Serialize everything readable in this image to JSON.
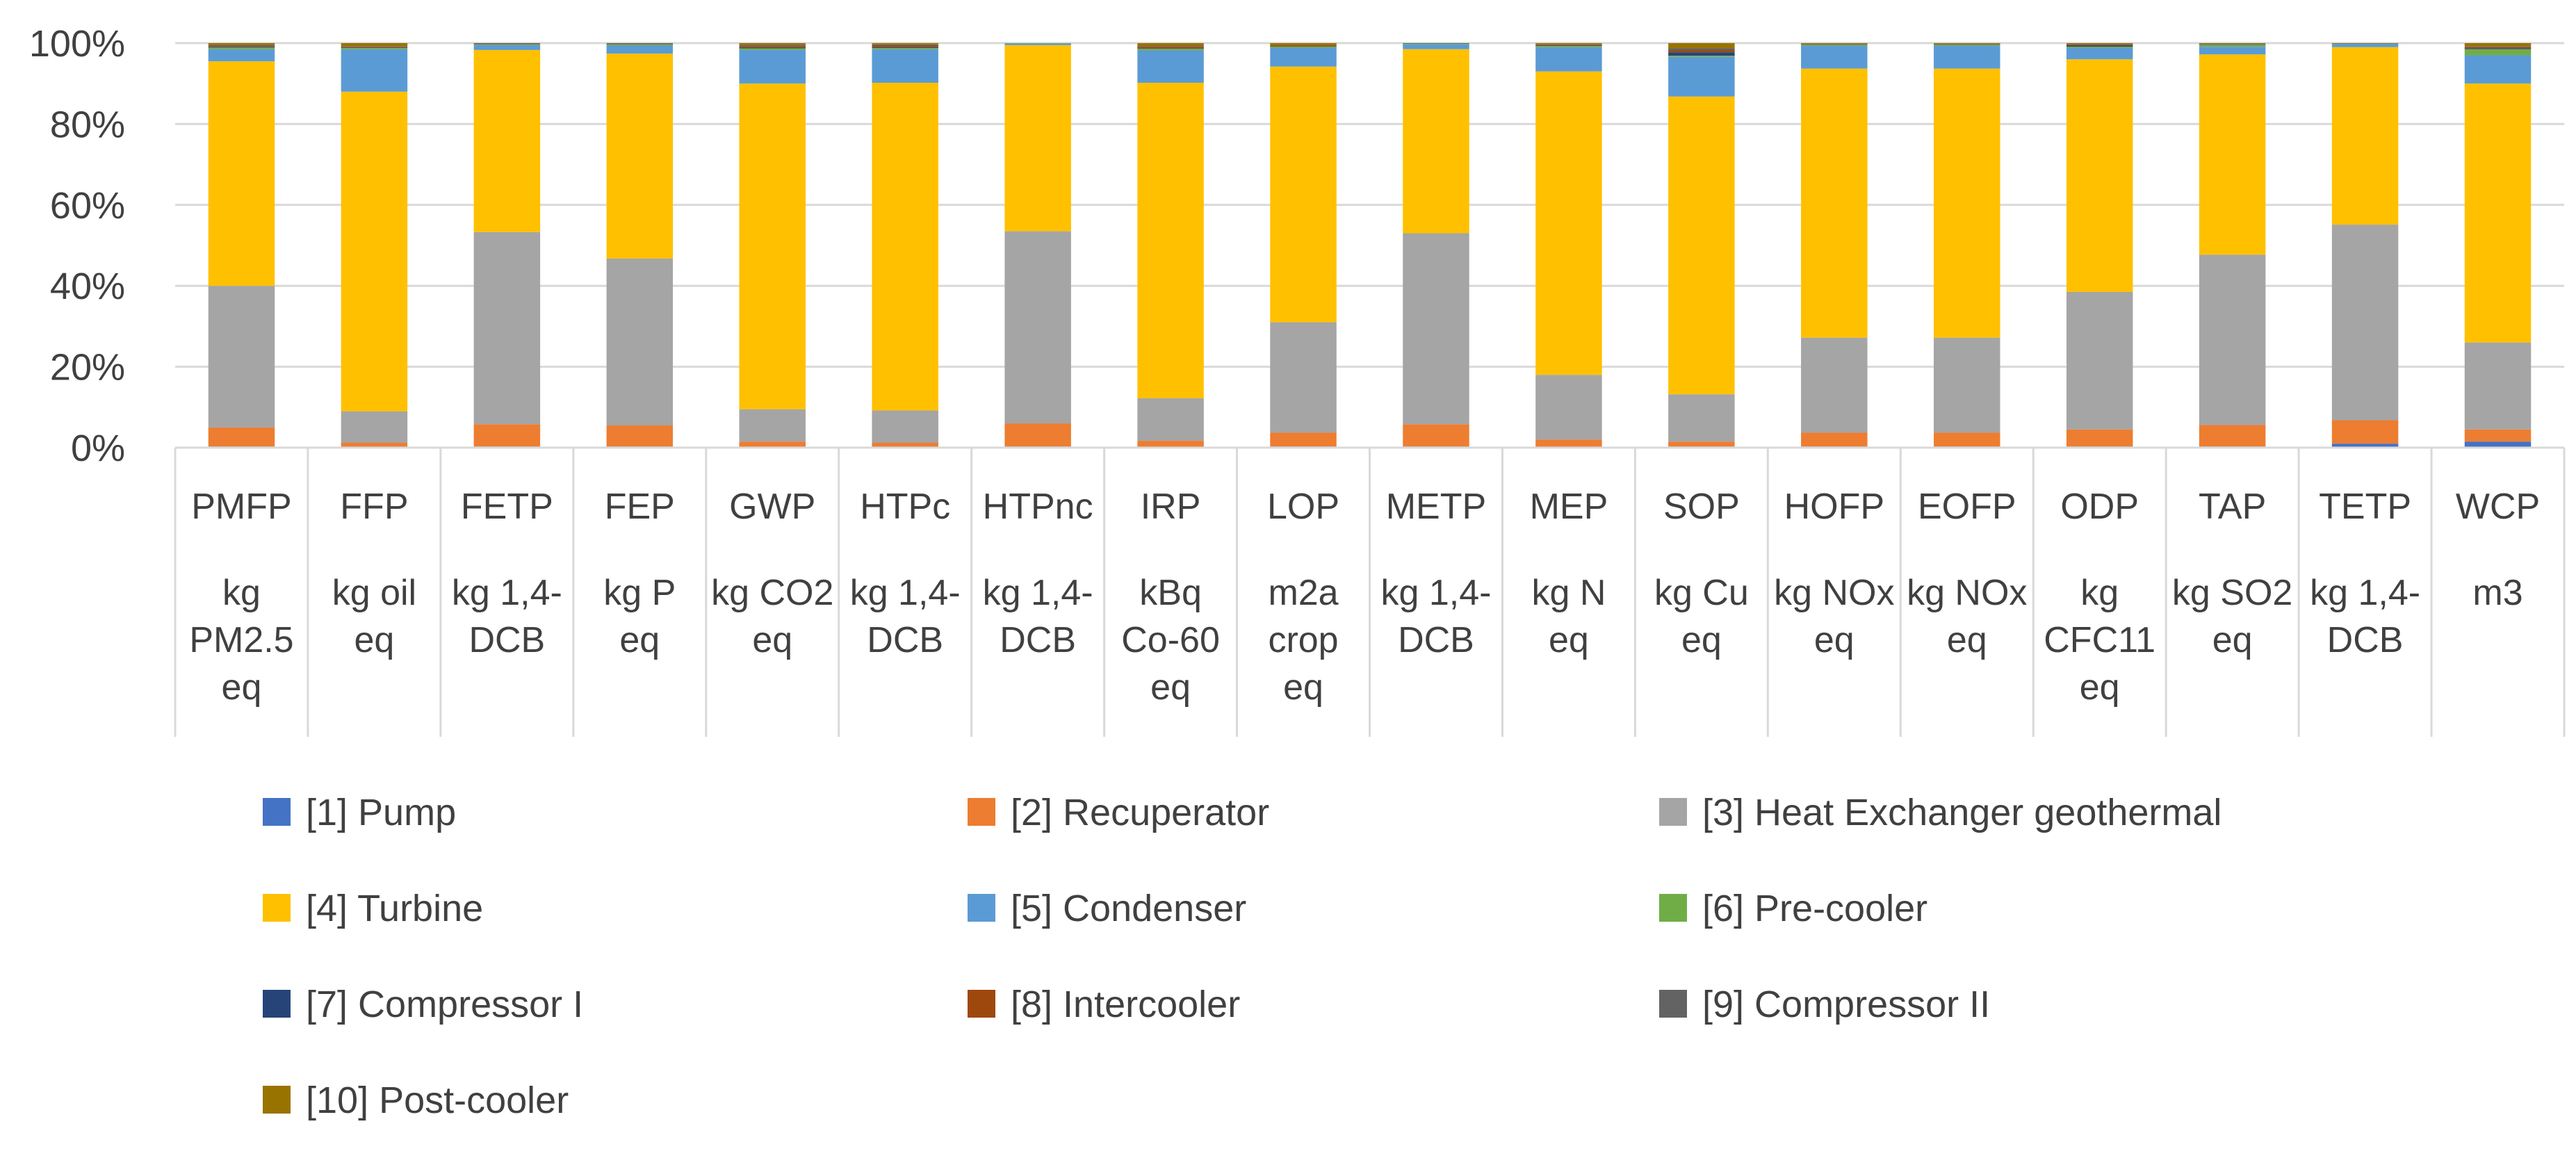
{
  "chart_data": {
    "type": "bar",
    "stacked": true,
    "percent_stacked": true,
    "title": "",
    "xlabel": "",
    "ylabel": "",
    "ylim": [
      0,
      100
    ],
    "y_ticks": [
      "0%",
      "20%",
      "40%",
      "60%",
      "80%",
      "100%"
    ],
    "grid": true,
    "legend_position": "bottom",
    "categories": [
      "PMFP",
      "FFP",
      "FETP",
      "FEP",
      "GWP",
      "HTPc",
      "HTPnc",
      "IRP",
      "LOP",
      "METP",
      "MEP",
      "SOP",
      "HOFP",
      "EOFP",
      "ODP",
      "TAP",
      "TETP",
      "WCP"
    ],
    "units": [
      "kg PM2.5 eq",
      "kg oil eq",
      "kg 1,4-DCB",
      "kg P eq",
      "kg CO2 eq",
      "kg 1,4-DCB",
      "kg 1,4-DCB",
      "kBq Co-60 eq",
      "m2a crop eq",
      "kg 1,4-DCB",
      "kg N eq",
      "kg Cu eq",
      "kg NOx eq",
      "kg NOx eq",
      "kg CFC11 eq",
      "kg SO2 eq",
      "kg 1,4-DCB",
      "m3"
    ],
    "unit_lines": [
      [
        "kg",
        "PM2.5",
        "eq"
      ],
      [
        "kg oil",
        "eq"
      ],
      [
        "kg 1,4-",
        "DCB"
      ],
      [
        "kg P",
        "eq"
      ],
      [
        "kg CO2",
        "eq"
      ],
      [
        "kg 1,4-",
        "DCB"
      ],
      [
        "kg 1,4-",
        "DCB"
      ],
      [
        "kBq",
        "Co-60",
        "eq"
      ],
      [
        "m2a",
        "crop",
        "eq"
      ],
      [
        "kg 1,4-",
        "DCB"
      ],
      [
        "kg N",
        "eq"
      ],
      [
        "kg Cu",
        "eq"
      ],
      [
        "kg NOx",
        "eq"
      ],
      [
        "kg NOx",
        "eq"
      ],
      [
        "kg",
        "CFC11",
        "eq"
      ],
      [
        "kg SO2",
        "eq"
      ],
      [
        "kg 1,4-",
        "DCB"
      ],
      [
        "m3"
      ]
    ],
    "series": [
      {
        "name": "[1] Pump",
        "color": "#4472C4",
        "values": [
          0.3,
          0.2,
          0.3,
          0.3,
          0.2,
          0.2,
          0.3,
          0.2,
          0.3,
          0.3,
          0.2,
          0.3,
          0.3,
          0.3,
          0.3,
          0.3,
          1.0,
          1.5
        ]
      },
      {
        "name": "[2] Recuperator",
        "color": "#ED7D31",
        "values": [
          4.7,
          1.0,
          5.5,
          5.2,
          1.3,
          1.0,
          5.7,
          1.5,
          3.4,
          5.5,
          1.8,
          1.2,
          3.4,
          3.4,
          4.2,
          5.3,
          5.8,
          3.0
        ]
      },
      {
        "name": "[3] Heat Exchanger geothermal",
        "color": "#A5A5A5",
        "values": [
          35.0,
          7.8,
          47.5,
          41.3,
          8.0,
          8.0,
          47.5,
          10.5,
          27.3,
          47.2,
          16.0,
          11.7,
          23.5,
          23.5,
          34.0,
          42.1,
          48.5,
          21.5
        ]
      },
      {
        "name": "[4] Turbine",
        "color": "#FFC000",
        "values": [
          55.5,
          79.0,
          45.0,
          50.7,
          80.5,
          81.0,
          46.0,
          78.0,
          63.2,
          45.5,
          75.0,
          73.6,
          66.5,
          66.5,
          57.5,
          49.5,
          44.0,
          64.0
        ]
      },
      {
        "name": "[5] Condenser",
        "color": "#5B9BD5",
        "values": [
          3.0,
          10.5,
          1.2,
          2.0,
          8.3,
          8.3,
          0.4,
          8.0,
          4.6,
          1.2,
          6.0,
          9.8,
          5.6,
          5.6,
          2.8,
          1.9,
          0.8,
          7.0
        ]
      },
      {
        "name": "[6] Pre-cooler",
        "color": "#70AD47",
        "values": [
          0.4,
          0.3,
          0.2,
          0.3,
          0.4,
          0.3,
          0.1,
          0.4,
          0.3,
          0.2,
          0.3,
          0.3,
          0.3,
          0.3,
          0.3,
          0.5,
          0.1,
          1.5
        ]
      },
      {
        "name": "[7] Compressor I",
        "color": "#264478",
        "values": [
          0.2,
          0.1,
          0.1,
          0.1,
          0.2,
          0.2,
          0.0,
          0.1,
          0.1,
          0.1,
          0.1,
          0.8,
          0.1,
          0.1,
          0.3,
          0.1,
          0.0,
          0.2
        ]
      },
      {
        "name": "[8] Intercooler",
        "color": "#9E480E",
        "values": [
          0.2,
          0.2,
          0.1,
          0.1,
          0.3,
          0.5,
          0.0,
          0.4,
          0.2,
          0.0,
          0.2,
          0.5,
          0.1,
          0.1,
          0.2,
          0.1,
          0.1,
          0.3
        ]
      },
      {
        "name": "[9] Compressor II",
        "color": "#636363",
        "values": [
          0.2,
          0.1,
          0.1,
          0.1,
          0.3,
          0.2,
          0.0,
          0.2,
          0.1,
          0.0,
          0.1,
          0.5,
          0.1,
          0.1,
          0.2,
          0.1,
          0.0,
          0.2
        ]
      },
      {
        "name": "[10] Post-cooler",
        "color": "#997300",
        "values": [
          0.5,
          0.8,
          0.0,
          0.0,
          0.5,
          0.3,
          0.0,
          0.7,
          0.5,
          0.0,
          0.3,
          1.3,
          0.1,
          0.1,
          0.2,
          0.1,
          0.0,
          0.8
        ]
      }
    ]
  }
}
